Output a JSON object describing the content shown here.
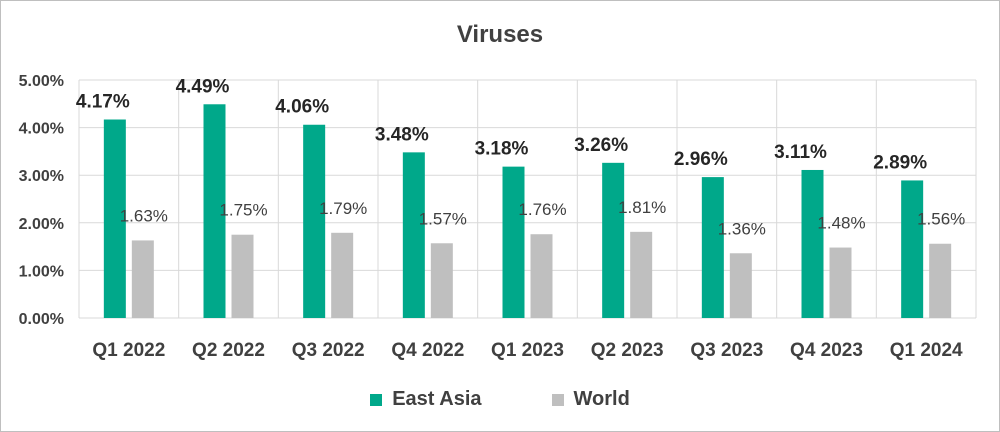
{
  "chart_data": {
    "type": "bar",
    "title": "Viruses",
    "categories": [
      "Q1 2022",
      "Q2 2022",
      "Q3 2022",
      "Q4 2022",
      "Q1 2023",
      "Q2 2023",
      "Q3 2023",
      "Q4 2023",
      "Q1 2024"
    ],
    "series": [
      {
        "name": "East Asia",
        "color": "#00a88a",
        "values": [
          4.17,
          4.49,
          4.06,
          3.48,
          3.18,
          3.26,
          2.96,
          3.11,
          2.89
        ],
        "labels": [
          "4.17%",
          "4.49%",
          "4.06%",
          "3.48%",
          "3.18%",
          "3.26%",
          "2.96%",
          "3.11%",
          "2.89%"
        ]
      },
      {
        "name": "World",
        "color": "#bfbfbf",
        "values": [
          1.63,
          1.75,
          1.79,
          1.57,
          1.76,
          1.81,
          1.36,
          1.48,
          1.56
        ],
        "labels": [
          "1.63%",
          "1.75%",
          "1.79%",
          "1.57%",
          "1.76%",
          "1.81%",
          "1.36%",
          "1.48%",
          "1.56%"
        ]
      }
    ],
    "yticks": [
      "0.00%",
      "1.00%",
      "2.00%",
      "3.00%",
      "4.00%",
      "5.00%"
    ],
    "ylim": [
      0,
      5
    ],
    "grid": true,
    "legend_position": "bottom"
  }
}
